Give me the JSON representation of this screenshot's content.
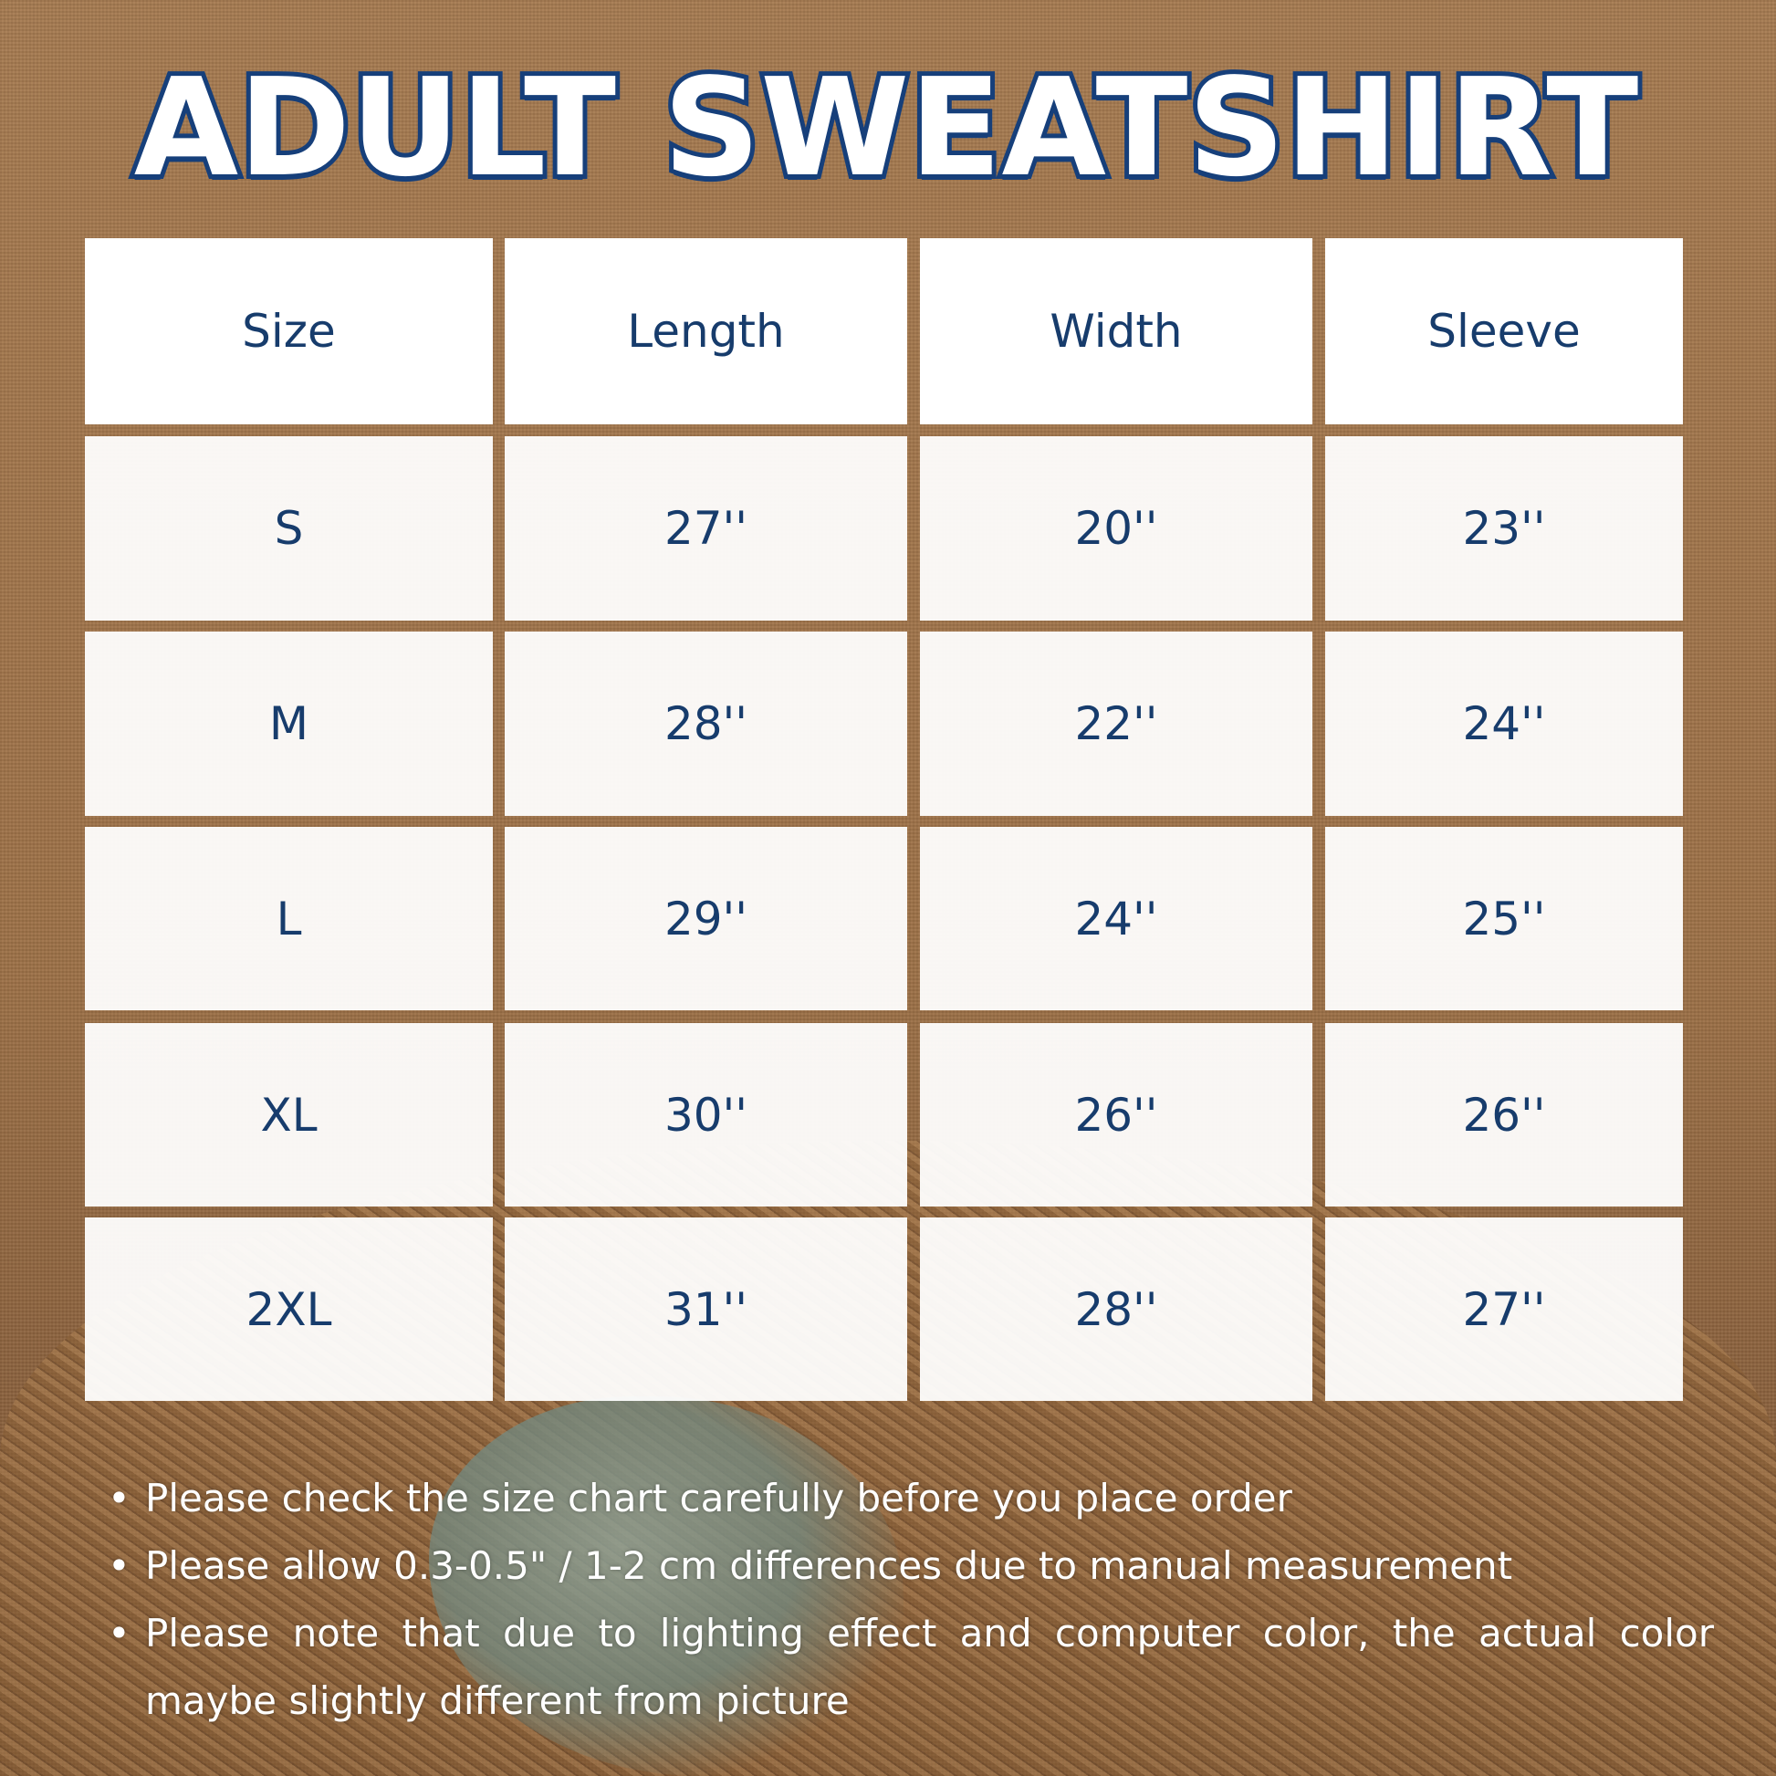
{
  "title": "ADULT SWEATSHIRT",
  "colors": {
    "text": "#173c6c",
    "title_outline": "#163f7a",
    "cell": "#ffffff",
    "background": "#a77c52"
  },
  "table": {
    "headers": [
      "Size",
      "Length",
      "Width",
      "Sleeve"
    ],
    "rows": [
      [
        "S",
        "27''",
        "20''",
        "23''"
      ],
      [
        "M",
        "28''",
        "22''",
        "24''"
      ],
      [
        "L",
        "29''",
        "24''",
        "25''"
      ],
      [
        "XL",
        "30''",
        "26''",
        "26''"
      ],
      [
        "2XL",
        "31''",
        "28''",
        "27''"
      ]
    ]
  },
  "notes": [
    "Please check the size chart carefully before you place order",
    "Please allow 0.3-0.5\" / 1-2 cm differences due to manual measurement",
    "Please note that due to lighting effect and computer color, the actual color maybe slightly different from picture"
  ]
}
